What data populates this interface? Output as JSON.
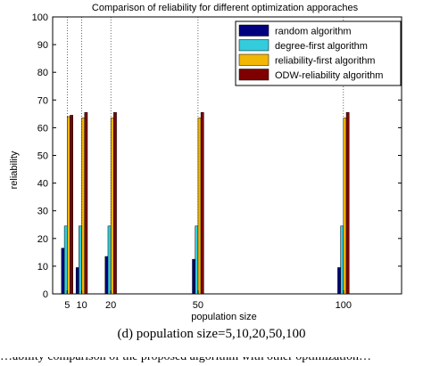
{
  "chart_data": {
    "type": "bar",
    "title": "Comparison of reliability for different optimization apporaches",
    "xlabel": "population size",
    "ylabel": "reliability",
    "categories": [
      "5",
      "10",
      "20",
      "50",
      "100"
    ],
    "x": [
      5,
      10,
      20,
      50,
      100
    ],
    "xlim": [
      0,
      120
    ],
    "ylim": [
      0,
      100
    ],
    "yticks": [
      0,
      10,
      20,
      30,
      40,
      50,
      60,
      70,
      80,
      90,
      100
    ],
    "grid": "dotted vertical lines at data positions",
    "legend_position": "top-right",
    "series": [
      {
        "name": "random algorithm",
        "color": "#00007f",
        "values": [
          16.5,
          9.5,
          13.5,
          12.5,
          9.5
        ]
      },
      {
        "name": "degree-first algorithm",
        "color": "#33ccdd",
        "values": [
          24.5,
          24.5,
          24.5,
          24.5,
          24.5
        ]
      },
      {
        "name": "reliability-first algorithm",
        "color": "#f2b705",
        "values": [
          64,
          63.5,
          63.5,
          63.5,
          63.5
        ]
      },
      {
        "name": "ODW-reliability algorithm",
        "color": "#7f0000",
        "values": [
          64.5,
          65.5,
          65.5,
          65.5,
          65.5
        ]
      }
    ]
  },
  "caption": "(d) population size=5,10,20,50,100",
  "cutoff_text": "…ability comparison of the proposed algorithm with other optimization…"
}
